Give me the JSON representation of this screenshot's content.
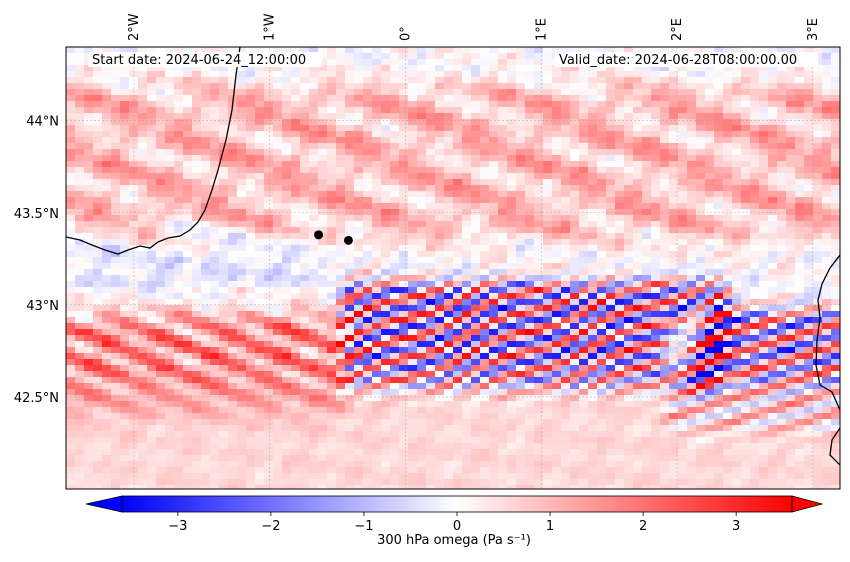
{
  "chart_data": {
    "type": "heatmap",
    "title": "",
    "annotations": {
      "start_date": "Start date: 2024-06-24_12:00:00",
      "valid_date": "Valid_date: 2024-06-28T08:00:00.00"
    },
    "x_axis": {
      "range_deg": [
        -2.5,
        3.2
      ],
      "ticks": [
        {
          "value": -2,
          "label": "2°W"
        },
        {
          "value": -1,
          "label": "1°W"
        },
        {
          "value": 0,
          "label": "0°"
        },
        {
          "value": 1,
          "label": "1°E"
        },
        {
          "value": 2,
          "label": "2°E"
        },
        {
          "value": 3,
          "label": "3°E"
        }
      ],
      "position": "top"
    },
    "y_axis": {
      "range_deg": [
        42.0,
        44.4
      ],
      "ticks": [
        {
          "value": 42.5,
          "label": "42.5°N"
        },
        {
          "value": 43.0,
          "label": "43°N"
        },
        {
          "value": 43.5,
          "label": "43.5°N"
        },
        {
          "value": 44.0,
          "label": "44°N"
        }
      ]
    },
    "grid": true,
    "colorbar": {
      "label": "300 hPa omega (Pa s⁻¹)",
      "range": [
        -3.6,
        3.6
      ],
      "extend": "both",
      "cmap": "bwr",
      "ticks": [
        {
          "value": -3,
          "label": "−3"
        },
        {
          "value": -2,
          "label": "−2"
        },
        {
          "value": -1,
          "label": "−1"
        },
        {
          "value": 0,
          "label": "0"
        },
        {
          "value": 1,
          "label": "1"
        },
        {
          "value": 2,
          "label": "2"
        },
        {
          "value": 3,
          "label": "3"
        }
      ]
    },
    "points": [
      {
        "lon": -0.64,
        "lat": 43.38
      },
      {
        "lon": -0.42,
        "lat": 43.35
      }
    ],
    "features": {
      "north_band": {
        "lon": [
          -2.5,
          3.2
        ],
        "lat": [
          43.45,
          44.1
        ],
        "peak": 1.3
      },
      "central_waves": {
        "lon": [
          -0.4,
          2.3
        ],
        "lat": [
          42.6,
          43.05
        ],
        "peak": 3.6
      },
      "southwest_band": {
        "lon": [
          -2.5,
          -0.5
        ],
        "lat": [
          42.5,
          42.85
        ],
        "peak": 2.8
      },
      "southeast_waves": {
        "lon": [
          2.0,
          3.2
        ],
        "lat": [
          42.4,
          42.9
        ],
        "peak": 3.6
      },
      "south_area": {
        "lon": [
          -2.5,
          3.2
        ],
        "lat": [
          42.0,
          42.45
        ],
        "peak": 1.0
      }
    }
  },
  "colors": {
    "cmap_low": "#0000ff",
    "cmap_mid": "#ffffff",
    "cmap_high": "#ff0000",
    "coast": "#000000",
    "gridline": "#999999",
    "point": "#000000"
  }
}
